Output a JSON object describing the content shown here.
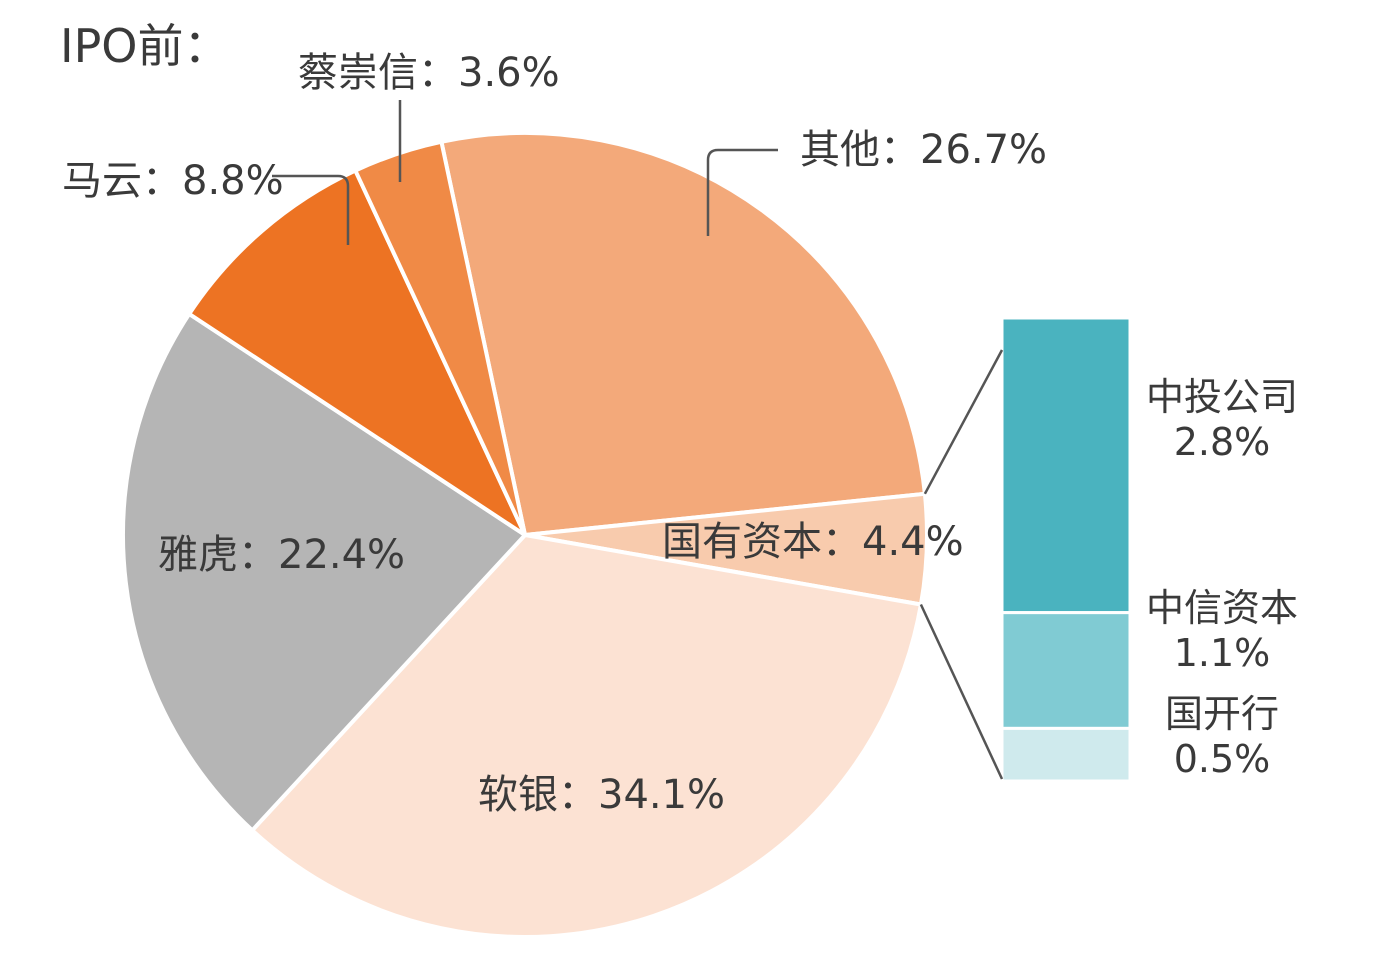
{
  "chart_data": {
    "type": "pie",
    "title": "IPO前：",
    "slices": [
      {
        "name": "其他",
        "value": 26.7,
        "label": "其他：26.7%",
        "color": "#f3a97a"
      },
      {
        "name": "国有资本",
        "value": 4.4,
        "label": "国有资本：4.4%",
        "color": "#f8cbad"
      },
      {
        "name": "软银",
        "value": 34.1,
        "label": "软银：34.1%",
        "color": "#fce2d3"
      },
      {
        "name": "雅虎",
        "value": 22.4,
        "label": "雅虎：22.4%",
        "color": "#b5b5b5"
      },
      {
        "name": "马云",
        "value": 8.8,
        "label": "马云：8.8%",
        "color": "#ed7323"
      },
      {
        "name": "蔡崇信",
        "value": 3.6,
        "label": "蔡崇信：3.6%",
        "color": "#f08a46"
      }
    ],
    "breakdown": {
      "parent": "国有资本",
      "type": "stacked-bar",
      "items": [
        {
          "name": "中投公司",
          "value": 2.8,
          "pct": "2.8%",
          "color": "#4ab3bf"
        },
        {
          "name": "中信资本",
          "value": 1.1,
          "pct": "1.1%",
          "color": "#80cbd3"
        },
        {
          "name": "国开行",
          "value": 0.5,
          "pct": "0.5%",
          "color": "#cfeaed"
        }
      ]
    }
  }
}
